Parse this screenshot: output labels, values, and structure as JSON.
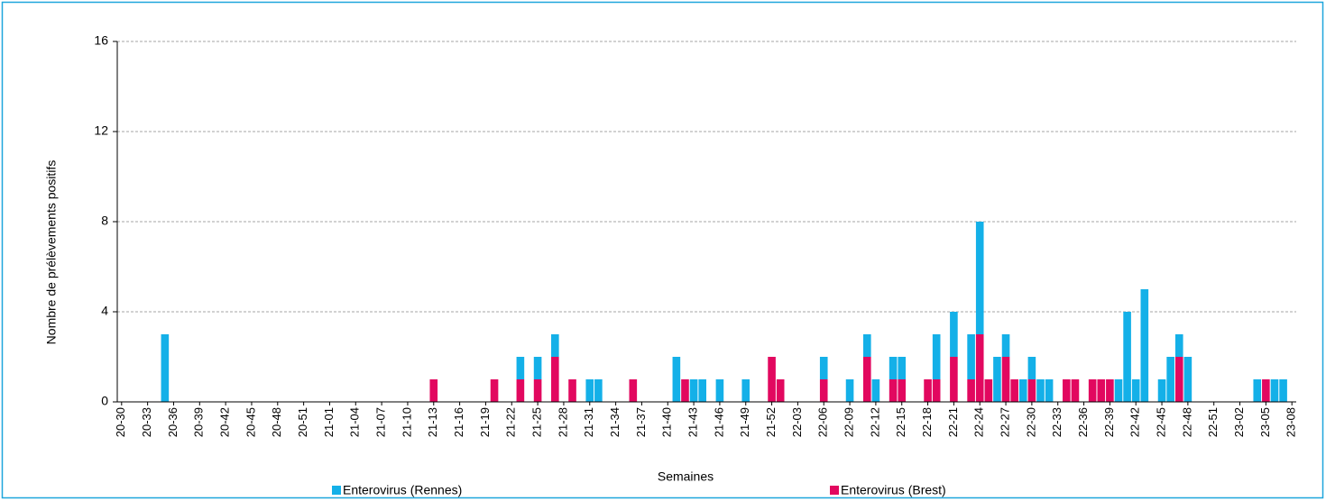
{
  "chart_data": {
    "type": "stacked_bar",
    "x_label": "Semaines",
    "y_label": "Nombre de prélèvements  positifs",
    "ylim": [
      0,
      16
    ],
    "yticks": [
      0,
      4,
      8,
      12,
      16
    ],
    "grid": true,
    "categories": [
      "20-30",
      null,
      null,
      "20-33",
      null,
      null,
      "20-36",
      null,
      null,
      "20-39",
      null,
      null,
      "20-42",
      null,
      null,
      "20-45",
      null,
      null,
      "20-48",
      null,
      null,
      "20-51",
      null,
      null,
      "21-01",
      null,
      null,
      "21-04",
      null,
      null,
      "21-07",
      null,
      null,
      "21-10",
      null,
      null,
      "21-13",
      null,
      null,
      "21-16",
      null,
      null,
      "21-19",
      null,
      null,
      "21-22",
      null,
      null,
      "21-25",
      null,
      null,
      "21-28",
      null,
      null,
      "21-31",
      null,
      null,
      "21-34",
      null,
      null,
      "21-37",
      null,
      null,
      "21-40",
      null,
      null,
      "21-43",
      null,
      null,
      "21-46",
      null,
      null,
      "21-49",
      null,
      null,
      "21-52",
      null,
      null,
      "22-03",
      null,
      null,
      "22-06",
      null,
      null,
      "22-09",
      null,
      null,
      "22-12",
      null,
      null,
      "22-15",
      null,
      null,
      "22-18",
      null,
      null,
      "22-21",
      null,
      null,
      "22-24",
      null,
      null,
      "22-27",
      null,
      null,
      "22-30",
      null,
      null,
      "22-33",
      null,
      null,
      "22-36",
      null,
      null,
      "22-39",
      null,
      null,
      "22-42",
      null,
      null,
      "22-45",
      null,
      null,
      "22-48",
      null,
      null,
      "22-51",
      null,
      null,
      "23-02",
      null,
      null,
      "23-05",
      null,
      null,
      "23-08"
    ],
    "series": [
      {
        "name": "Enterovirus (Rennes)",
        "color": "#14b0e8",
        "values": [
          0,
          0,
          0,
          0,
          0,
          3,
          0,
          0,
          0,
          0,
          0,
          0,
          0,
          0,
          0,
          0,
          0,
          0,
          0,
          0,
          0,
          0,
          0,
          0,
          0,
          0,
          0,
          0,
          0,
          0,
          0,
          0,
          0,
          0,
          0,
          0,
          0,
          0,
          0,
          0,
          0,
          0,
          0,
          0,
          0,
          0,
          1,
          0,
          1,
          0,
          1,
          0,
          0,
          0,
          1,
          1,
          0,
          0,
          0,
          0,
          0,
          0,
          0,
          0,
          2,
          0,
          1,
          1,
          0,
          1,
          0,
          0,
          1,
          0,
          0,
          0,
          0,
          0,
          0,
          0,
          0,
          1,
          0,
          0,
          1,
          0,
          1,
          1,
          0,
          1,
          1,
          0,
          0,
          0,
          2,
          0,
          2,
          0,
          2,
          5,
          0,
          2,
          1,
          0,
          1,
          1,
          1,
          1,
          0,
          0,
          0,
          0,
          0,
          0,
          0,
          1,
          4,
          1,
          5,
          0,
          1,
          2,
          1,
          2,
          0,
          0,
          0,
          0,
          0,
          0,
          0,
          1,
          0,
          1,
          1,
          0
        ]
      },
      {
        "name": "Enterovirus (Brest)",
        "color": "#e2085f",
        "values": [
          0,
          0,
          0,
          0,
          0,
          0,
          0,
          0,
          0,
          0,
          0,
          0,
          0,
          0,
          0,
          0,
          0,
          0,
          0,
          0,
          0,
          0,
          0,
          0,
          0,
          0,
          0,
          0,
          0,
          0,
          0,
          0,
          0,
          0,
          0,
          0,
          1,
          0,
          0,
          0,
          0,
          0,
          0,
          1,
          0,
          0,
          1,
          0,
          1,
          0,
          2,
          0,
          1,
          0,
          0,
          0,
          0,
          0,
          0,
          1,
          0,
          0,
          0,
          0,
          0,
          1,
          0,
          0,
          0,
          0,
          0,
          0,
          0,
          0,
          0,
          2,
          1,
          0,
          0,
          0,
          0,
          1,
          0,
          0,
          0,
          0,
          2,
          0,
          0,
          1,
          1,
          0,
          0,
          1,
          1,
          0,
          2,
          0,
          1,
          3,
          1,
          0,
          2,
          1,
          0,
          1,
          0,
          0,
          0,
          1,
          1,
          0,
          1,
          1,
          1,
          0,
          0,
          0,
          0,
          0,
          0,
          0,
          2,
          0,
          0,
          0,
          0,
          0,
          0,
          0,
          0,
          0,
          1,
          0,
          0,
          0
        ]
      }
    ]
  }
}
